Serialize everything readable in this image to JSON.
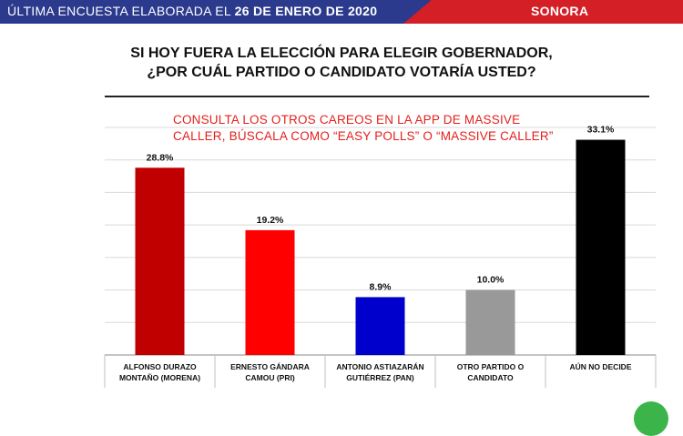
{
  "header": {
    "left_prefix": "ÚLTIMA ENCUESTA ELABORADA EL ",
    "left_date": "26 DE ENERO DE 2020",
    "right_label": "SONORA",
    "colors": {
      "left": "#2b3a8c",
      "right": "#d51f26"
    }
  },
  "promo": {
    "line1": "CONSULTA LOS OTROS CAREOS EN LA APP DE MASSIVE",
    "line2": "CALLER, BÚSCALA COMO “EASY POLLS” O “MASSIVE CALLER”"
  },
  "chart_data": {
    "type": "bar",
    "title_lines": [
      "SI HOY FUERA LA ELECCIÓN PARA ELEGIR GOBERNADOR,",
      "¿POR CUÁL PARTIDO O CANDIDATO VOTARÍA USTED?"
    ],
    "categories": [
      [
        "ALFONSO DURAZO",
        "MONTAÑO (MORENA)"
      ],
      [
        "ERNESTO GÁNDARA",
        "CAMOU (PRI)"
      ],
      [
        "ANTONIO ASTIAZARÁN",
        "GUTIÉRREZ (PAN)"
      ],
      [
        "OTRO PARTIDO O",
        "CANDIDATO"
      ],
      [
        "AÚN NO DECIDE"
      ]
    ],
    "values": [
      28.8,
      19.2,
      8.9,
      10.0,
      33.1
    ],
    "value_labels": [
      "28.8%",
      "19.2%",
      "8.9%",
      "10.0%",
      "33.1%"
    ],
    "colors": [
      "#c00000",
      "#ff0000",
      "#0000cc",
      "#999999",
      "#000000"
    ],
    "ylim": [
      0,
      35
    ],
    "grid": true,
    "legend": "none"
  },
  "footer": {
    "icon": "whatsapp-icon",
    "color": "#3bb54a"
  }
}
